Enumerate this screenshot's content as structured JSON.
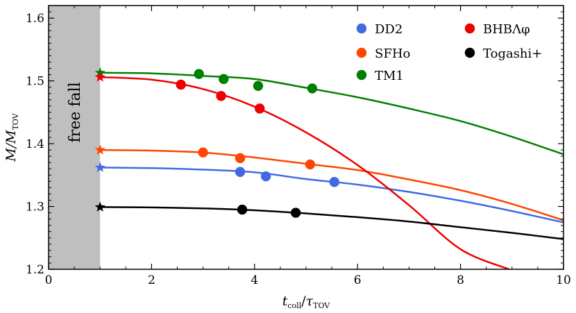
{
  "chart_data": {
    "type": "line",
    "xlabel_main": "t",
    "xlabel_sub": "coll",
    "xlabel_sep": "/",
    "xlabel_main2": "τ",
    "xlabel_sub2": "TOV",
    "ylabel_main": "M/M",
    "ylabel_sub": "TOV",
    "xlim": [
      0,
      10
    ],
    "ylim": [
      1.2,
      1.62
    ],
    "xticks": [
      0,
      2,
      4,
      6,
      8,
      10
    ],
    "yticks": [
      1.2,
      1.3,
      1.4,
      1.5,
      1.6
    ],
    "xtick_labels": [
      "0",
      "2",
      "4",
      "6",
      "8",
      "10"
    ],
    "ytick_labels": [
      "1.2",
      "1.3",
      "1.4",
      "1.5",
      "1.6"
    ],
    "shaded_region": {
      "x": [
        0,
        1
      ],
      "label": "free fall",
      "color": "#bfbfbf"
    },
    "legend_position": "top-right",
    "series": [
      {
        "name": "DD2",
        "color": "#4169e1",
        "star": [
          1.0,
          1.362
        ],
        "points": [
          [
            3.72,
            1.355
          ],
          [
            4.22,
            1.348
          ],
          [
            5.55,
            1.339
          ]
        ],
        "curve": [
          [
            1.0,
            1.362
          ],
          [
            2.0,
            1.3611
          ],
          [
            3.0,
            1.3587
          ],
          [
            4.0,
            1.3545
          ],
          [
            5.0,
            1.3437
          ],
          [
            6.0,
            1.3349
          ],
          [
            7.0,
            1.3232
          ],
          [
            8.0,
            1.3091
          ],
          [
            9.0,
            1.2927
          ],
          [
            10.0,
            1.2746
          ]
        ]
      },
      {
        "name": "SFHo",
        "color": "#ff4500",
        "star": [
          1.0,
          1.39
        ],
        "points": [
          [
            3.0,
            1.386
          ],
          [
            3.72,
            1.377
          ],
          [
            5.08,
            1.367
          ]
        ],
        "curve": [
          [
            1.0,
            1.39
          ],
          [
            2.0,
            1.389
          ],
          [
            3.0,
            1.386
          ],
          [
            4.0,
            1.378
          ],
          [
            5.0,
            1.368
          ],
          [
            6.0,
            1.358
          ],
          [
            7.0,
            1.343
          ],
          [
            8.0,
            1.326
          ],
          [
            9.0,
            1.304
          ],
          [
            10.0,
            1.278
          ]
        ]
      },
      {
        "name": "TM1",
        "color": "#008000",
        "star": [
          1.0,
          1.513
        ],
        "points": [
          [
            2.92,
            1.511
          ],
          [
            3.4,
            1.503
          ],
          [
            4.07,
            1.492
          ],
          [
            5.12,
            1.488
          ]
        ],
        "curve": [
          [
            1.0,
            1.513
          ],
          [
            2.0,
            1.512
          ],
          [
            3.0,
            1.508
          ],
          [
            4.0,
            1.503
          ],
          [
            5.0,
            1.489
          ],
          [
            6.0,
            1.474
          ],
          [
            7.0,
            1.456
          ],
          [
            8.0,
            1.436
          ],
          [
            9.0,
            1.411
          ],
          [
            10.0,
            1.383
          ]
        ]
      },
      {
        "name": "BHBΛφ",
        "color": "#ee0000",
        "star": [
          1.0,
          1.506
        ],
        "points": [
          [
            2.57,
            1.494
          ],
          [
            3.35,
            1.476
          ],
          [
            4.1,
            1.456
          ]
        ],
        "curve": [
          [
            1.0,
            1.506
          ],
          [
            2.0,
            1.502
          ],
          [
            3.0,
            1.487
          ],
          [
            4.0,
            1.459
          ],
          [
            5.0,
            1.418
          ],
          [
            6.0,
            1.366
          ],
          [
            7.0,
            1.302
          ],
          [
            8.0,
            1.232
          ],
          [
            8.94,
            1.2
          ]
        ]
      },
      {
        "name": "Togashi+",
        "color": "#000000",
        "star": [
          1.0,
          1.299
        ],
        "points": [
          [
            3.76,
            1.295
          ],
          [
            4.8,
            1.29
          ]
        ],
        "curve": [
          [
            1.0,
            1.299
          ],
          [
            2.0,
            1.2985
          ],
          [
            3.0,
            1.297
          ],
          [
            4.0,
            1.294
          ],
          [
            5.0,
            1.289
          ],
          [
            6.0,
            1.283
          ],
          [
            7.0,
            1.276
          ],
          [
            8.0,
            1.267
          ],
          [
            9.0,
            1.258
          ],
          [
            10.0,
            1.248
          ]
        ]
      }
    ]
  }
}
